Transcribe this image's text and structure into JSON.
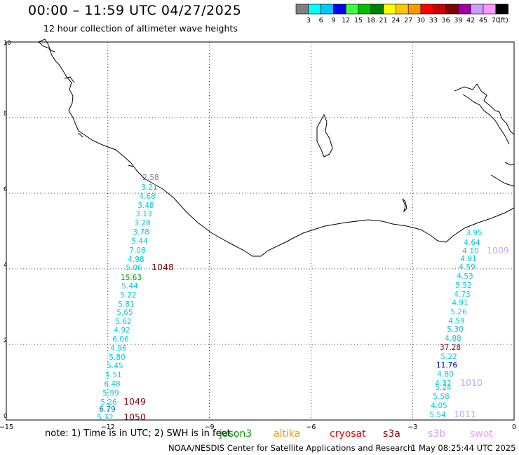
{
  "title": "00:00 – 11:59 UTC 04/27/2025",
  "subtitle": "12 hour collection of altimeter wave heights",
  "legend": {
    "unit_label": "(ft)",
    "bins": [
      {
        "label": "3",
        "color": "#808080"
      },
      {
        "label": "6",
        "color": "#00ffff"
      },
      {
        "label": "9",
        "color": "#00c8ff"
      },
      {
        "label": "12",
        "color": "#0000ff"
      },
      {
        "label": "15",
        "color": "#40ff40"
      },
      {
        "label": "18",
        "color": "#00c000"
      },
      {
        "label": "21",
        "color": "#008000"
      },
      {
        "label": "24",
        "color": "#ffff00"
      },
      {
        "label": "27",
        "color": "#ffc800"
      },
      {
        "label": "30",
        "color": "#ff9600"
      },
      {
        "label": "33",
        "color": "#ff0000"
      },
      {
        "label": "36",
        "color": "#c80000"
      },
      {
        "label": "39",
        "color": "#800000"
      },
      {
        "label": "42",
        "color": "#a000a0"
      },
      {
        "label": "45",
        "color": "#c8a0ff"
      },
      {
        "label": "70",
        "color": "#ff96ff"
      },
      {
        "label": "",
        "color": "#000000"
      }
    ]
  },
  "axes": {
    "x_ticks": [
      "−15",
      "−12",
      "−9",
      "−6",
      "−3",
      "0"
    ],
    "y_ticks": [
      "0",
      "2",
      "4",
      "6",
      "8",
      "10"
    ]
  },
  "observations": [
    {
      "v": "2.58",
      "color": "#808080"
    },
    {
      "v": "3.21",
      "color": "#00ccdd"
    },
    {
      "v": "4.68",
      "color": "#00ccdd"
    },
    {
      "v": "3.48",
      "color": "#00ccdd"
    },
    {
      "v": "3.13",
      "color": "#00ccdd"
    },
    {
      "v": "3.28",
      "color": "#00ccdd"
    },
    {
      "v": "3.78",
      "color": "#00ccdd"
    },
    {
      "v": "5.44",
      "color": "#00ccdd"
    },
    {
      "v": "7.08",
      "color": "#00ccdd"
    },
    {
      "v": "4.98",
      "color": "#00ccdd"
    },
    {
      "v": "5.06",
      "color": "#00ccdd"
    },
    {
      "v": "1048",
      "color": "#800000"
    },
    {
      "v": "15.63",
      "color": "#00aa00"
    },
    {
      "v": "5.44",
      "color": "#00ccdd"
    },
    {
      "v": "5.22",
      "color": "#00ccdd"
    },
    {
      "v": "5.81",
      "color": "#00ccdd"
    },
    {
      "v": "5.65",
      "color": "#00ccdd"
    },
    {
      "v": "5.62",
      "color": "#00ccdd"
    },
    {
      "v": "4.92",
      "color": "#00ccdd"
    },
    {
      "v": "6.06",
      "color": "#00ccdd"
    },
    {
      "v": "4.96",
      "color": "#00ccdd"
    },
    {
      "v": "5.80",
      "color": "#00ccdd"
    },
    {
      "v": "5.45",
      "color": "#00ccdd"
    },
    {
      "v": "5.51",
      "color": "#00ccdd"
    },
    {
      "v": "6.48",
      "color": "#00ccdd"
    },
    {
      "v": "5.99",
      "color": "#00ccdd"
    },
    {
      "v": "5.26",
      "color": "#00ccdd"
    },
    {
      "v": "1049",
      "color": "#800000"
    },
    {
      "v": "6.79",
      "color": "#0066cc"
    },
    {
      "v": "5.12",
      "color": "#00ccdd"
    },
    {
      "v": "1050",
      "color": "#800000"
    },
    {
      "v": "3.95",
      "color": "#00ccdd"
    },
    {
      "v": "4.64",
      "color": "#00ccdd"
    },
    {
      "v": "4.10",
      "color": "#00ccdd"
    },
    {
      "v": "1009",
      "color": "#c8a0ff"
    },
    {
      "v": "4.91",
      "color": "#00ccdd"
    },
    {
      "v": "4.59",
      "color": "#00ccdd"
    },
    {
      "v": "4.53",
      "color": "#00ccdd"
    },
    {
      "v": "5.52",
      "color": "#00ccdd"
    },
    {
      "v": "4.73",
      "color": "#00ccdd"
    },
    {
      "v": "4.91",
      "color": "#00ccdd"
    },
    {
      "v": "5.26",
      "color": "#00ccdd"
    },
    {
      "v": "4.59",
      "color": "#00ccdd"
    },
    {
      "v": "5.30",
      "color": "#00ccdd"
    },
    {
      "v": "4.88",
      "color": "#00ccdd"
    },
    {
      "v": "37.28",
      "color": "#800000"
    },
    {
      "v": "5.22",
      "color": "#00ccdd"
    },
    {
      "v": "11.76",
      "color": "#0000aa"
    },
    {
      "v": "4.80",
      "color": "#00ccdd"
    },
    {
      "v": "4.32",
      "color": "#00ccdd"
    },
    {
      "v": "1010",
      "color": "#c8a0ff"
    },
    {
      "v": "5.24",
      "color": "#00ccdd"
    },
    {
      "v": "5.58",
      "color": "#00ccdd"
    },
    {
      "v": "4.05",
      "color": "#00ccdd"
    },
    {
      "v": "5.54",
      "color": "#00ccdd"
    },
    {
      "v": "1011",
      "color": "#c8a0ff"
    }
  ],
  "footer": {
    "note": "note:  1) Time is in UTC;  2) SWH is in feet",
    "satellites": [
      {
        "name": "jason3",
        "color": "#00a000"
      },
      {
        "name": "altika",
        "color": "#ff9600"
      },
      {
        "name": "cryosat",
        "color": "#ff0000"
      },
      {
        "name": "s3a",
        "color": "#800000"
      },
      {
        "name": "s3b",
        "color": "#c8a0ff"
      },
      {
        "name": "swot",
        "color": "#ff96ff"
      }
    ],
    "credit": "NOAA/NESDIS Center for Satellite Applications and Research",
    "updated": "1 May 08:25:44 UTC 2025"
  }
}
